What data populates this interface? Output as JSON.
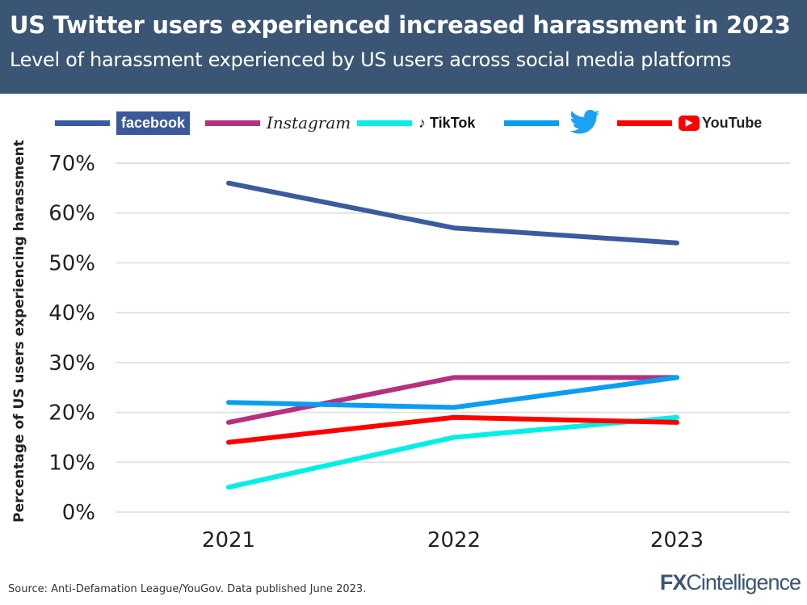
{
  "header": {
    "title": "US Twitter users experienced increased harassment in 2023",
    "subtitle": "Level of harassment experienced by US users across social media platforms"
  },
  "footer": {
    "source": "Source: Anti-Defamation League/YouGov. Data published June 2023.",
    "logo_bold": "FX",
    "logo_rest": "Cintelligence"
  },
  "chart_data": {
    "type": "line",
    "title": "US Twitter users experienced increased harassment in 2023",
    "subtitle": "Level of harassment experienced by US users across social media platforms",
    "xlabel": "",
    "ylabel": "Percentage of US users experiencing harassment",
    "x": [
      "2021",
      "2022",
      "2023"
    ],
    "ylim": [
      0,
      70
    ],
    "yticks": [
      "0%",
      "10%",
      "20%",
      "30%",
      "40%",
      "50%",
      "60%",
      "70%"
    ],
    "grid": true,
    "legend_placement": "top",
    "series": [
      {
        "name": "facebook",
        "color": "#3b5ba0",
        "values": [
          66,
          57,
          54
        ]
      },
      {
        "name": "Instagram",
        "color": "#b5317f",
        "values": [
          18,
          27,
          27
        ]
      },
      {
        "name": "TikTok",
        "color": "#00f0e6",
        "values": [
          5,
          15,
          19
        ]
      },
      {
        "name": "Twitter",
        "color": "#0a9ef2",
        "values": [
          22,
          21,
          27
        ]
      },
      {
        "name": "YouTube",
        "color": "#ff0000",
        "values": [
          14,
          19,
          18
        ]
      }
    ]
  }
}
